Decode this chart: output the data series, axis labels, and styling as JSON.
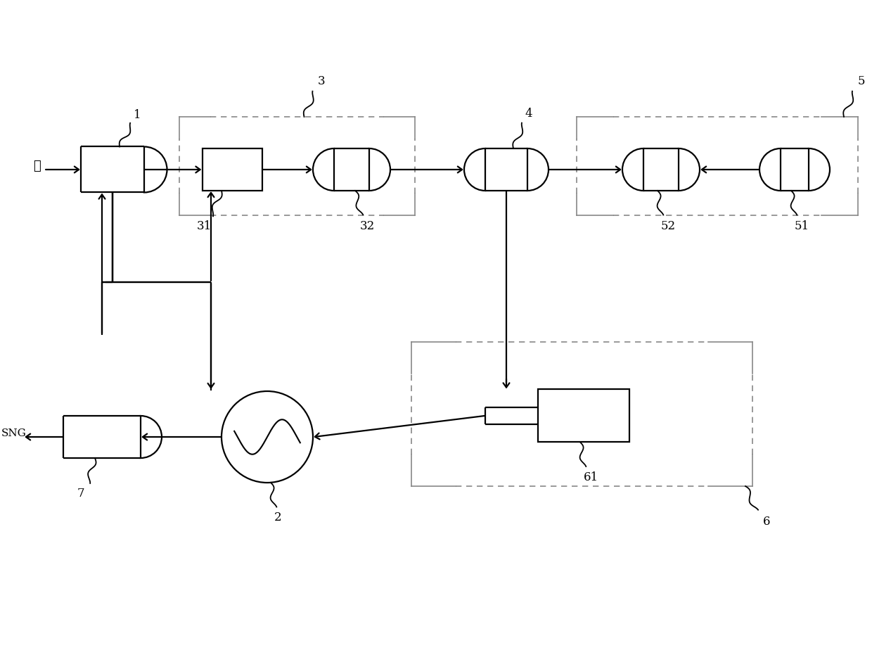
{
  "bg": "#ffffff",
  "lc": "#000000",
  "dc": "#888888",
  "fw": 12.4,
  "fh": 9.21,
  "dpi": 100,
  "labels": {
    "water": "水",
    "sng": "SNG",
    "n1": "1",
    "n2": "2",
    "n3": "3",
    "n4": "4",
    "n5": "5",
    "n6": "6",
    "n7": "7",
    "n31": "31",
    "n32": "32",
    "n51": "51",
    "n52": "52",
    "n61": "61"
  }
}
